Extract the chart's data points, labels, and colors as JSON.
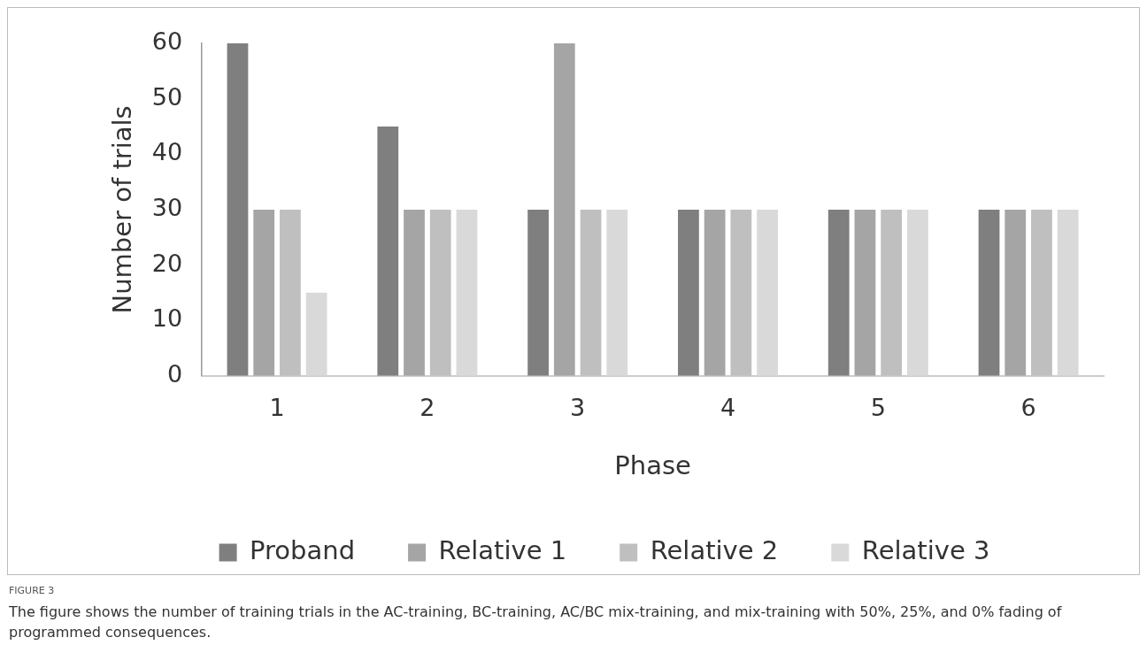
{
  "chart_data": {
    "type": "bar",
    "xlabel": "Phase",
    "ylabel": "Number of trials",
    "categories": [
      "1",
      "2",
      "3",
      "4",
      "5",
      "6"
    ],
    "series": [
      {
        "name": "Proband",
        "color": "#7f7f7f",
        "values": [
          60,
          45,
          30,
          30,
          30,
          30
        ]
      },
      {
        "name": "Relative 1",
        "color": "#a5a5a5",
        "values": [
          30,
          30,
          60,
          30,
          30,
          30
        ]
      },
      {
        "name": "Relative 2",
        "color": "#bfbfbf",
        "values": [
          30,
          30,
          30,
          30,
          30,
          30
        ]
      },
      {
        "name": "Relative 3",
        "color": "#d9d9d9",
        "values": [
          15,
          30,
          30,
          30,
          30,
          30
        ]
      }
    ],
    "ylim": [
      0,
      60
    ],
    "yticks": [
      0,
      10,
      20,
      30,
      40,
      50,
      60
    ],
    "grid": false,
    "legend": "bottom",
    "annotations": [
      "FIGURE 3",
      "The figure shows the number of training trials in the AC-training, BC-training, AC/BC mix-training, and mix-training with 50%, 25%, and 0% fading of programmed consequences."
    ]
  }
}
